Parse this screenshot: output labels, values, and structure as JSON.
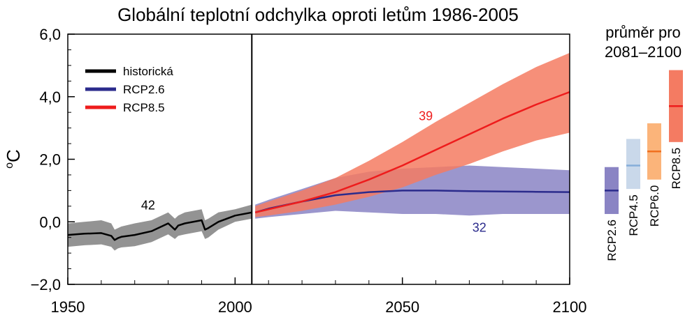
{
  "chart_data": {
    "type": "line",
    "title": "Globální teplotní odchylka oproti letům 1986-2005",
    "ylabel": "oC",
    "ylabel_super": "o",
    "ylabel_main": "C",
    "xlim": [
      1950,
      2100
    ],
    "ylim": [
      -2.0,
      6.0
    ],
    "xticks": [
      1950,
      2000,
      2050,
      2100
    ],
    "xtick_labels": [
      "1950",
      "2000",
      "2050",
      "2100"
    ],
    "yticks": [
      -2.0,
      0.0,
      2.0,
      4.0,
      6.0
    ],
    "ytick_labels": [
      "−2,0",
      "0,0",
      "2,0",
      "4,0",
      "6,0"
    ],
    "vline_x": 2005,
    "legend_position": "top-left",
    "legend": [
      {
        "label": "historická",
        "color": "#000000"
      },
      {
        "label": "RCP2.6",
        "color": "#2b2b8c"
      },
      {
        "label": "RCP8.5",
        "color": "#ee1c1c"
      }
    ],
    "series": [
      {
        "name": "historická",
        "color": "#000000",
        "band_color": "#808080",
        "annotation": "42",
        "x": [
          1950,
          1955,
          1960,
          1963,
          1964,
          1965,
          1966,
          1970,
          1975,
          1980,
          1982,
          1983,
          1985,
          1990,
          1991,
          1992,
          1995,
          2000,
          2005
        ],
        "y": [
          -0.42,
          -0.38,
          -0.36,
          -0.45,
          -0.58,
          -0.52,
          -0.48,
          -0.42,
          -0.3,
          -0.05,
          -0.25,
          -0.12,
          -0.05,
          0.05,
          -0.25,
          -0.2,
          0.0,
          0.2,
          0.3
        ],
        "lower": [
          -0.8,
          -0.75,
          -0.72,
          -0.8,
          -0.92,
          -0.85,
          -0.82,
          -0.78,
          -0.65,
          -0.4,
          -0.55,
          -0.45,
          -0.4,
          -0.3,
          -0.55,
          -0.5,
          -0.25,
          0.0,
          0.1
        ],
        "upper": [
          -0.05,
          0.0,
          0.05,
          -0.05,
          -0.25,
          -0.2,
          -0.15,
          -0.05,
          0.05,
          0.3,
          0.1,
          0.2,
          0.3,
          0.4,
          0.05,
          0.1,
          0.3,
          0.4,
          0.55
        ]
      },
      {
        "name": "RCP2.6",
        "color": "#2b2b8c",
        "band_color": "#8a84c4",
        "annotation": "32",
        "x": [
          2006,
          2010,
          2020,
          2030,
          2040,
          2050,
          2060,
          2070,
          2080,
          2090,
          2100
        ],
        "y": [
          0.3,
          0.42,
          0.65,
          0.85,
          0.95,
          1.0,
          1.0,
          0.98,
          0.97,
          0.96,
          0.95
        ],
        "lower": [
          0.1,
          0.15,
          0.25,
          0.35,
          0.3,
          0.25,
          0.25,
          0.2,
          0.25,
          0.25,
          0.25
        ],
        "upper": [
          0.55,
          0.7,
          1.05,
          1.4,
          1.6,
          1.7,
          1.75,
          1.8,
          1.75,
          1.7,
          1.65
        ]
      },
      {
        "name": "RCP8.5",
        "color": "#ee1c1c",
        "band_color": "#f47b62",
        "annotation": "39",
        "x": [
          2006,
          2010,
          2020,
          2030,
          2040,
          2050,
          2060,
          2070,
          2080,
          2090,
          2100
        ],
        "y": [
          0.3,
          0.4,
          0.65,
          0.95,
          1.35,
          1.8,
          2.3,
          2.8,
          3.3,
          3.75,
          4.15
        ],
        "lower": [
          0.15,
          0.2,
          0.35,
          0.55,
          0.8,
          1.1,
          1.5,
          1.85,
          2.25,
          2.6,
          2.85
        ],
        "upper": [
          0.5,
          0.65,
          1.0,
          1.4,
          1.95,
          2.55,
          3.2,
          3.8,
          4.4,
          4.95,
          5.4
        ]
      }
    ],
    "side_panel": {
      "title_line1": "průměr pro",
      "title_line2": "2081–2100",
      "bars": [
        {
          "label": "RCP2.6",
          "mean": 1.0,
          "low": 0.25,
          "high": 1.75,
          "fill": "#8a84c4",
          "line": "#2b2b8c"
        },
        {
          "label": "RCP4.5",
          "mean": 1.8,
          "low": 1.05,
          "high": 2.65,
          "fill": "#c9d8ea",
          "line": "#86aed9"
        },
        {
          "label": "RCP6.0",
          "mean": 2.25,
          "low": 1.35,
          "high": 3.15,
          "fill": "#fbb47a",
          "line": "#f07020"
        },
        {
          "label": "RCP8.5",
          "mean": 3.7,
          "low": 2.55,
          "high": 4.85,
          "fill": "#f47b62",
          "line": "#ee1c1c"
        }
      ]
    }
  }
}
